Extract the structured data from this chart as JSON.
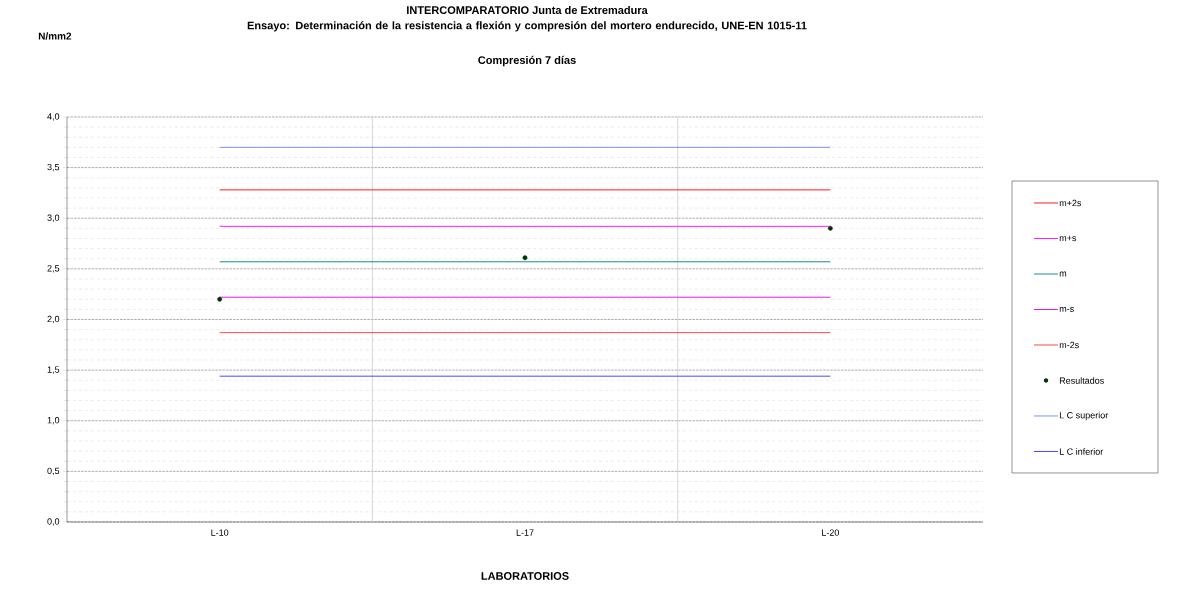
{
  "chart_data": {
    "type": "line",
    "title": "INTERCOMPARATORIO Junta de Extremadura",
    "subtitle": "Ensayo: Determinación de la resistencia a flexión y compresión del mortero endurecido, UNE-EN 1015-11",
    "annotations": [
      "N/mm2",
      "Compresión 7 días"
    ],
    "xlabel": "LABORATORIOS",
    "categories": [
      "L-10",
      "L-17",
      "L-20"
    ],
    "series": [
      {
        "name": "m+2s",
        "color": "#ff0000",
        "values": [
          3.28,
          3.28,
          3.28
        ]
      },
      {
        "name": "m+s",
        "color": "#ff00ff",
        "values": [
          2.92,
          2.92,
          2.92
        ]
      },
      {
        "name": "m",
        "color": "#008080",
        "values": [
          2.57,
          2.57,
          2.57
        ]
      },
      {
        "name": "m-s",
        "color": "#e000e0",
        "values": [
          2.22,
          2.22,
          2.22
        ]
      },
      {
        "name": "m-2s",
        "color": "#ff3030",
        "values": [
          1.87,
          1.87,
          1.87
        ]
      },
      {
        "name": "Resultados",
        "type": "scatter",
        "marker": "circle",
        "color": "#003300",
        "values": [
          2.2,
          2.61,
          2.9
        ]
      },
      {
        "name": "L C superior",
        "color": "#6688ee",
        "values": [
          3.7,
          3.7,
          3.7
        ]
      },
      {
        "name": "L C inferior",
        "color": "#3333ff",
        "values": [
          1.44,
          1.44,
          1.44
        ]
      }
    ],
    "ylim": [
      0,
      4
    ],
    "yticks": [
      {
        "value": 0,
        "label": "0,0"
      },
      {
        "value": 0.5,
        "label": "0,5"
      },
      {
        "value": 1,
        "label": "1,0"
      },
      {
        "value": 1.5,
        "label": "1,5"
      },
      {
        "value": 2,
        "label": "2,0"
      },
      {
        "value": 2.5,
        "label": "2,5"
      },
      {
        "value": 3,
        "label": "3,0"
      },
      {
        "value": 3.5,
        "label": "3,5"
      },
      {
        "value": 4,
        "label": "4,0"
      }
    ],
    "grid": true,
    "legend": "right"
  }
}
